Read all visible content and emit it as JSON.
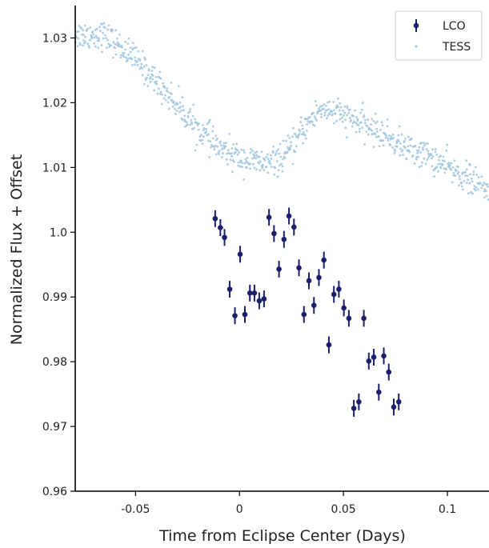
{
  "chart_data": {
    "type": "scatter",
    "title": "",
    "xlabel": "Time from Eclipse Center (Days)",
    "ylabel": "Normalized Flux + Offset",
    "xlim": [
      -0.079,
      0.12
    ],
    "ylim": [
      0.96,
      1.035
    ],
    "x_ticks": [
      -0.05,
      0,
      0.05,
      0.1
    ],
    "x_tick_labels": [
      "-0.05",
      "0",
      "0.05",
      "0.1"
    ],
    "y_ticks": [
      0.96,
      0.97,
      0.98,
      0.99,
      1.0,
      1.01,
      1.02,
      1.03
    ],
    "y_tick_labels": [
      "0.96",
      "0.97",
      "0.98",
      "0.99",
      "1.0",
      "1.01",
      "1.02",
      "1.03"
    ],
    "grid": false,
    "legend_position": "top-right",
    "colors": {
      "LCO": "#1b1f6b",
      "TESS": "#9ec4de"
    },
    "series": [
      {
        "name": "LCO",
        "style": "errorbar",
        "points": [
          [
            -0.0117,
            1.0021,
            0.0013
          ],
          [
            -0.0092,
            1.0007,
            0.0013
          ],
          [
            -0.0072,
            0.9992,
            0.0013
          ],
          [
            -0.0047,
            0.9912,
            0.0013
          ],
          [
            -0.0022,
            0.9871,
            0.0013
          ],
          [
            0.0003,
            0.9966,
            0.0013
          ],
          [
            0.0026,
            0.9873,
            0.0013
          ],
          [
            0.005,
            0.9906,
            0.0013
          ],
          [
            0.0072,
            0.9906,
            0.0013
          ],
          [
            0.0095,
            0.9894,
            0.0013
          ],
          [
            0.0118,
            0.9897,
            0.0013
          ],
          [
            0.0142,
            1.0023,
            0.0013
          ],
          [
            0.0166,
            0.9998,
            0.0013
          ],
          [
            0.019,
            0.9943,
            0.0013
          ],
          [
            0.0214,
            0.9989,
            0.0013
          ],
          [
            0.0238,
            1.0025,
            0.0013
          ],
          [
            0.0262,
            1.0008,
            0.0013
          ],
          [
            0.0286,
            0.9945,
            0.0013
          ],
          [
            0.031,
            0.9873,
            0.0013
          ],
          [
            0.0334,
            0.9925,
            0.0013
          ],
          [
            0.0358,
            0.9887,
            0.0013
          ],
          [
            0.0382,
            0.993,
            0.0013
          ],
          [
            0.0406,
            0.9957,
            0.0013
          ],
          [
            0.043,
            0.9826,
            0.0013
          ],
          [
            0.0454,
            0.9904,
            0.0013
          ],
          [
            0.0478,
            0.9912,
            0.0013
          ],
          [
            0.0502,
            0.9883,
            0.0013
          ],
          [
            0.0526,
            0.9867,
            0.0013
          ],
          [
            0.055,
            0.9728,
            0.0013
          ],
          [
            0.0574,
            0.9738,
            0.0013
          ],
          [
            0.0598,
            0.9867,
            0.0013
          ],
          [
            0.0622,
            0.9801,
            0.0013
          ],
          [
            0.0646,
            0.9807,
            0.0013
          ],
          [
            0.067,
            0.9753,
            0.0013
          ],
          [
            0.0694,
            0.9809,
            0.0013
          ],
          [
            0.0718,
            0.9784,
            0.0013
          ],
          [
            0.0742,
            0.973,
            0.0013
          ],
          [
            0.0766,
            0.9738,
            0.0013
          ]
        ]
      },
      {
        "name": "TESS",
        "style": "points",
        "trend": [
          [
            -0.079,
            1.0305
          ],
          [
            -0.065,
            1.0305
          ],
          [
            -0.05,
            1.0268
          ],
          [
            -0.035,
            1.0215
          ],
          [
            -0.02,
            1.016
          ],
          [
            -0.008,
            1.0125
          ],
          [
            0.005,
            1.011
          ],
          [
            0.015,
            1.0105
          ],
          [
            0.024,
            1.0125
          ],
          [
            0.033,
            1.017
          ],
          [
            0.04,
            1.0192
          ],
          [
            0.05,
            1.018
          ],
          [
            0.06,
            1.0165
          ],
          [
            0.07,
            1.015
          ],
          [
            0.08,
            1.013
          ],
          [
            0.09,
            1.012
          ],
          [
            0.1,
            1.01
          ],
          [
            0.112,
            1.008
          ],
          [
            0.12,
            1.006
          ]
        ],
        "cadence": 0.0005,
        "scatter": 0.0011
      }
    ]
  }
}
